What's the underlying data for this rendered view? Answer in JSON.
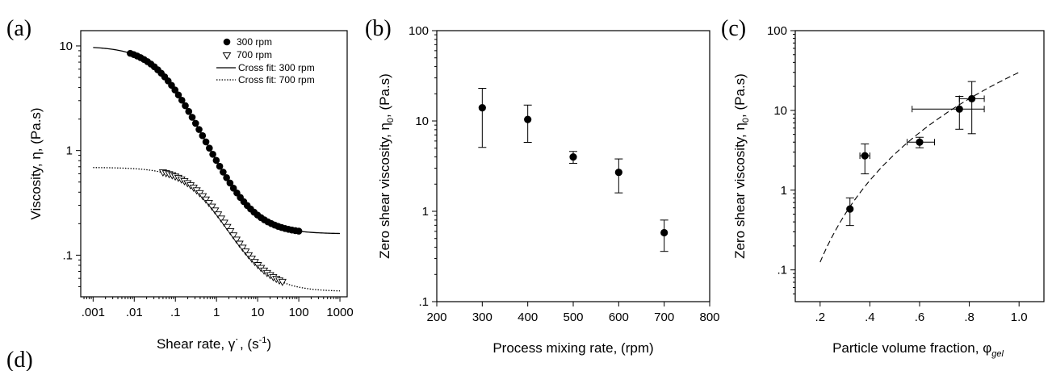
{
  "chart_data": [
    {
      "panel_label": "(a)",
      "type": "scatter",
      "xlabel": "Shear rate, γ˙, (s",
      "xlabel_sup": "-1",
      "xlabel_end": ")",
      "ylabel": "Viscosity, η, (Pa.s)",
      "xscale": "log",
      "yscale": "log",
      "xlim": [
        0.0005,
        1500
      ],
      "ylim": [
        0.04,
        14
      ],
      "x_ticks": [
        {
          "value": 0.001,
          "label": ".001"
        },
        {
          "value": 0.01,
          "label": ".01"
        },
        {
          "value": 0.1,
          "label": ".1"
        },
        {
          "value": 1,
          "label": "1"
        },
        {
          "value": 10,
          "label": "10"
        },
        {
          "value": 100,
          "label": "100"
        },
        {
          "value": 1000,
          "label": "1000"
        }
      ],
      "y_ticks": [
        {
          "value": 0.1,
          "label": ".1"
        },
        {
          "value": 1,
          "label": "1"
        },
        {
          "value": 10,
          "label": "10"
        }
      ],
      "legend_position": "top-right",
      "legend": [
        {
          "label": "300 rpm",
          "marker": "filled-circle"
        },
        {
          "label": "700 rpm",
          "marker": "open-triangle-down"
        },
        {
          "label": "Cross fit: 300 rpm",
          "line": "solid"
        },
        {
          "label": "Cross fit: 700 rpm",
          "line": "dotted"
        }
      ],
      "series": [
        {
          "name": "300 rpm",
          "marker": "filled-circle",
          "x_range": [
            0.008,
            100
          ],
          "n_points": 50,
          "model": {
            "eta0": 9.9,
            "eta_inf": 0.16,
            "lambda": 18,
            "m": 0.92
          }
        },
        {
          "name": "700 rpm",
          "marker": "open-triangle-down",
          "x_range": [
            0.05,
            40
          ],
          "n_points": 40,
          "model": {
            "eta0": 0.69,
            "eta_inf": 0.045,
            "lambda": 2.2,
            "m": 0.92
          }
        },
        {
          "name": "Cross fit: 300 rpm",
          "line": "solid",
          "x_range": [
            0.001,
            1000
          ],
          "model": {
            "eta0": 9.9,
            "eta_inf": 0.16,
            "lambda": 18,
            "m": 0.92
          }
        },
        {
          "name": "Cross fit: 700 rpm",
          "line": "dotted",
          "x_range": [
            0.001,
            1000
          ],
          "model": {
            "eta0": 0.69,
            "eta_inf": 0.045,
            "lambda": 2.2,
            "m": 0.92
          }
        }
      ]
    },
    {
      "panel_label": "(b)",
      "type": "scatter",
      "xlabel": "Process mixing rate, (rpm)",
      "ylabel": "Zero shear viscosity, η",
      "ylabel_sub": "0",
      "ylabel_end": ", (Pa.s)",
      "xscale": "linear",
      "yscale": "log",
      "xlim": [
        200,
        800
      ],
      "ylim": [
        0.1,
        100
      ],
      "x_ticks": [
        {
          "value": 200,
          "label": "200"
        },
        {
          "value": 300,
          "label": "300"
        },
        {
          "value": 400,
          "label": "400"
        },
        {
          "value": 500,
          "label": "500"
        },
        {
          "value": 600,
          "label": "600"
        },
        {
          "value": 700,
          "label": "700"
        },
        {
          "value": 800,
          "label": "800"
        }
      ],
      "y_ticks": [
        {
          "value": 0.1,
          "label": ".1"
        },
        {
          "value": 1,
          "label": "1"
        },
        {
          "value": 10,
          "label": "10"
        },
        {
          "value": 100,
          "label": "100"
        }
      ],
      "points": [
        {
          "x": 300,
          "y": 14,
          "y_low": 5.1,
          "y_high": 23
        },
        {
          "x": 400,
          "y": 10.4,
          "y_low": 5.8,
          "y_high": 15
        },
        {
          "x": 500,
          "y": 4.0,
          "y_low": 3.4,
          "y_high": 4.6
        },
        {
          "x": 600,
          "y": 2.7,
          "y_low": 1.6,
          "y_high": 3.8
        },
        {
          "x": 700,
          "y": 0.58,
          "y_low": 0.36,
          "y_high": 0.8
        }
      ]
    },
    {
      "panel_label": "(c)",
      "type": "scatter",
      "xlabel": "Particle volume fraction, φ",
      "xlabel_sub": "gel",
      "ylabel": "Zero shear viscosity, η",
      "ylabel_sub": "0",
      "ylabel_end": ", (Pa.s)",
      "xscale": "linear",
      "yscale": "log",
      "xlim": [
        0.1,
        1.1
      ],
      "ylim": [
        0.04,
        100
      ],
      "x_ticks": [
        {
          "value": 0.2,
          "label": ".2"
        },
        {
          "value": 0.4,
          "label": ".4"
        },
        {
          "value": 0.6,
          "label": ".6"
        },
        {
          "value": 0.8,
          "label": ".8"
        },
        {
          "value": 1.0,
          "label": "1.0"
        }
      ],
      "y_ticks": [
        {
          "value": 0.1,
          "label": ".1"
        },
        {
          "value": 1,
          "label": "1"
        },
        {
          "value": 10,
          "label": "10"
        },
        {
          "value": 100,
          "label": "100"
        }
      ],
      "points": [
        {
          "x": 0.32,
          "y": 0.58,
          "y_low": 0.36,
          "y_high": 0.8,
          "x_low": 0.32,
          "x_high": 0.32
        },
        {
          "x": 0.38,
          "y": 2.7,
          "y_low": 1.6,
          "y_high": 3.8,
          "x_low": 0.36,
          "x_high": 0.4
        },
        {
          "x": 0.6,
          "y": 4.0,
          "y_low": 3.4,
          "y_high": 4.6,
          "x_low": 0.55,
          "x_high": 0.66
        },
        {
          "x": 0.76,
          "y": 10.4,
          "y_low": 5.8,
          "y_high": 15,
          "x_low": 0.57,
          "x_high": 0.86
        },
        {
          "x": 0.81,
          "y": 14,
          "y_low": 5.1,
          "y_high": 23,
          "x_low": 0.76,
          "x_high": 0.86
        }
      ],
      "fit": {
        "line": "dashed",
        "x_range": [
          0.2,
          1.0
        ],
        "y_at_start": 0.125,
        "y_at_end": 30
      }
    }
  ],
  "extra_panel_label": "(d)"
}
